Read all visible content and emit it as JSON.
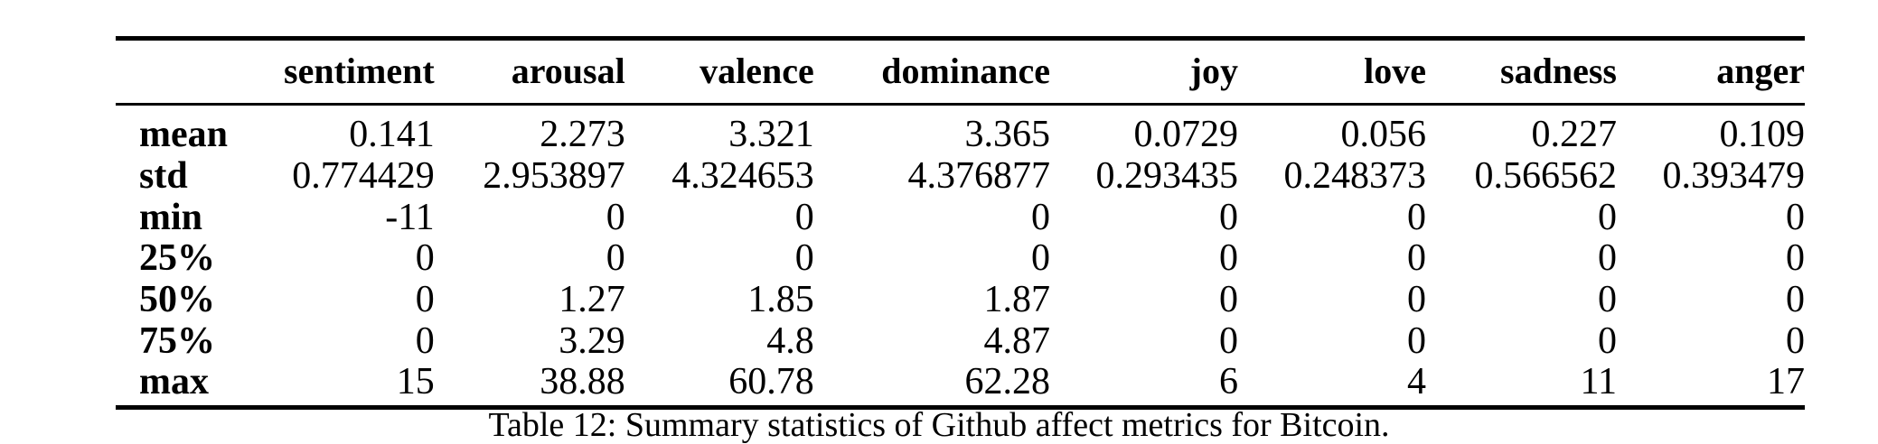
{
  "table": {
    "columns": [
      "",
      "sentiment",
      "arousal",
      "valence",
      "dominance",
      "joy",
      "love",
      "sadness",
      "anger"
    ],
    "rows": [
      {
        "label": "mean",
        "values": [
          "0.141",
          "2.273",
          "3.321",
          "3.365",
          "0.0729",
          "0.056",
          "0.227",
          "0.109"
        ]
      },
      {
        "label": "std",
        "values": [
          "0.774429",
          "2.953897",
          "4.324653",
          "4.376877",
          "0.293435",
          "0.248373",
          "0.566562",
          "0.393479"
        ]
      },
      {
        "label": "min",
        "values": [
          "-11",
          "0",
          "0",
          "0",
          "0",
          "0",
          "0",
          "0"
        ]
      },
      {
        "label": "25%",
        "values": [
          "0",
          "0",
          "0",
          "0",
          "0",
          "0",
          "0",
          "0"
        ]
      },
      {
        "label": "50%",
        "values": [
          "0",
          "1.27",
          "1.85",
          "1.87",
          "0",
          "0",
          "0",
          "0"
        ]
      },
      {
        "label": "75%",
        "values": [
          "0",
          "3.29",
          "4.8",
          "4.87",
          "0",
          "0",
          "0",
          "0"
        ]
      },
      {
        "label": "max",
        "values": [
          "15",
          "38.88",
          "60.78",
          "62.28",
          "6",
          "4",
          "11",
          "17"
        ]
      }
    ]
  },
  "caption": "Table 12: Summary statistics of Github affect metrics for Bitcoin."
}
